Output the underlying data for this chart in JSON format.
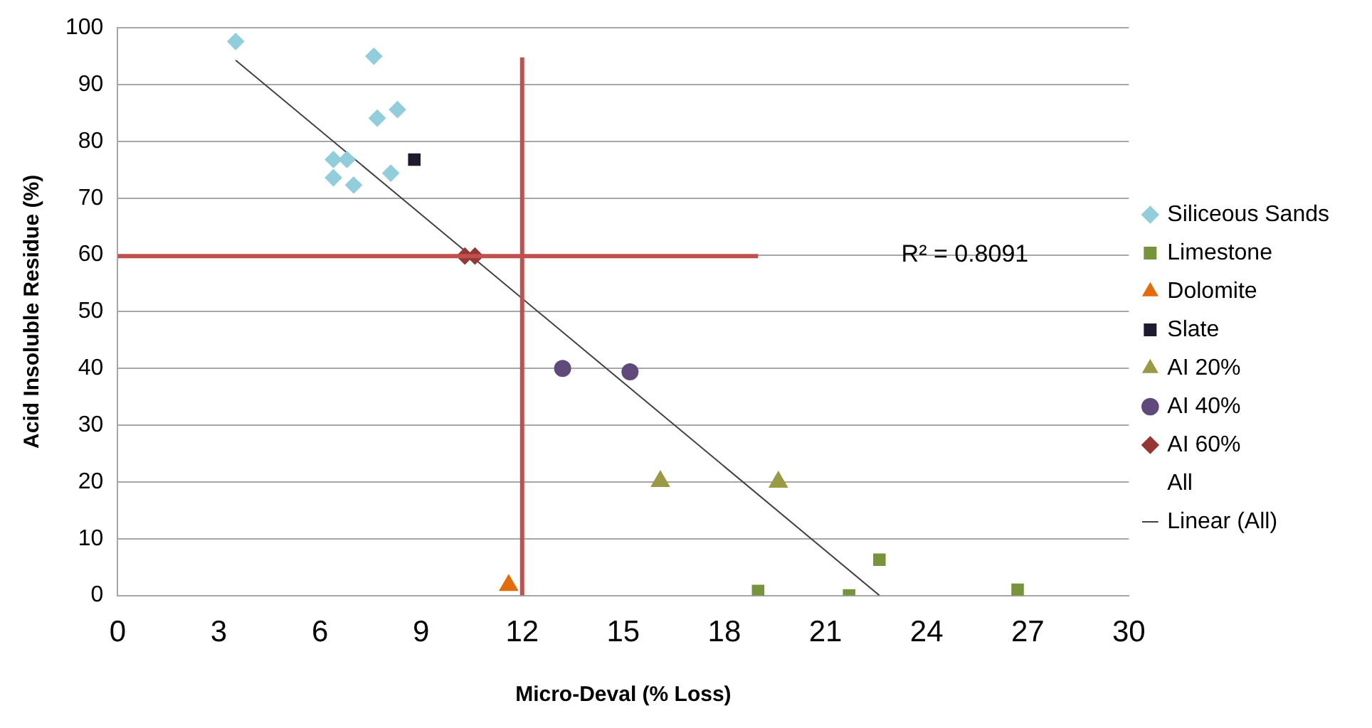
{
  "chart_data": {
    "type": "scatter",
    "xlabel": "Micro-Deval (% Loss)",
    "ylabel": "Acid Insoluble Residue (%)",
    "xlim": [
      0,
      30
    ],
    "xticks": [
      0,
      3,
      6,
      9,
      12,
      15,
      18,
      21,
      24,
      27,
      30
    ],
    "ylim": [
      0,
      100
    ],
    "yticks": [
      0,
      10,
      20,
      30,
      40,
      50,
      60,
      70,
      80,
      90,
      100
    ],
    "grid": "y",
    "legend": "right",
    "annotations": [
      "R² = 0.8091"
    ],
    "series": [
      {
        "name": "Siliceous Sands",
        "color": "#92cddc",
        "marker": "diamond",
        "x": [
          3.5,
          7.6,
          7.7,
          8.3,
          6.4,
          6.8,
          6.4,
          7.0,
          8.1
        ],
        "values": [
          97.6,
          95.0,
          84.1,
          85.6,
          76.8,
          76.8,
          73.6,
          72.3,
          74.4
        ]
      },
      {
        "name": "Limestone",
        "color": "#77933c",
        "marker": "square",
        "x": [
          19.0,
          21.7,
          22.6,
          26.7
        ],
        "values": [
          0.8,
          0,
          6.3,
          1.0
        ]
      },
      {
        "name": "Dolomite",
        "color": "#e46c0a",
        "marker": "triangle",
        "x": [
          11.6
        ],
        "values": [
          1.8
        ]
      },
      {
        "name": "Slate",
        "color": "#1f1a2e",
        "marker": "square",
        "x": [
          8.8
        ],
        "values": [
          76.8
        ]
      },
      {
        "name": "AI 20%",
        "color": "#9a9a46",
        "marker": "triangle",
        "x": [
          16.1,
          19.6
        ],
        "values": [
          20.1,
          20.0
        ]
      },
      {
        "name": "AI 40%",
        "color": "#604a7b",
        "marker": "circle",
        "x": [
          13.2,
          15.2
        ],
        "values": [
          40.0,
          39.4
        ]
      },
      {
        "name": "AI 60%",
        "color": "#953735",
        "marker": "diamond",
        "x": [
          10.3,
          10.6
        ],
        "values": [
          59.8,
          59.8
        ]
      },
      {
        "name": "All",
        "marker": "none"
      },
      {
        "name": "Linear (All)",
        "type": "line",
        "color": "#404040",
        "marker": "none",
        "x": [
          3.5,
          22.6
        ],
        "values": [
          94.3,
          0
        ]
      },
      {
        "type": "line",
        "color": "#c0504d",
        "marker": "none",
        "x": [
          0,
          19.0
        ],
        "values": [
          59.8,
          59.8
        ]
      },
      {
        "type": "line",
        "color": "#c0504d",
        "marker": "none",
        "x": [
          12,
          12
        ],
        "values": [
          0,
          94.8
        ]
      }
    ]
  }
}
